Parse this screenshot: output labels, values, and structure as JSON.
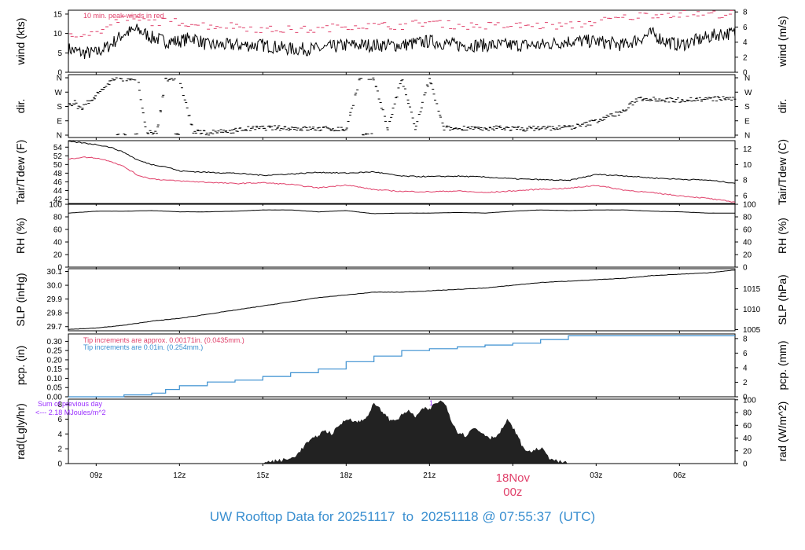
{
  "footer": {
    "title": "UW Rooftop Data for 20251117  to  20251118 @ 07:55:37  (UTC)"
  },
  "chart_data": [
    {
      "id": "wind",
      "type": "line",
      "left_axis_label": "wind (kts)",
      "right_axis_label": "wind (m/s)",
      "left_ticks": [
        0,
        5,
        10,
        15
      ],
      "left_range": [
        0,
        16
      ],
      "right_ticks": [
        0,
        2,
        4,
        6,
        8
      ],
      "right_range": [
        0,
        8.23
      ],
      "annotations": [
        {
          "text": "10 min. peak-winds in red",
          "color": "#e0406a"
        }
      ],
      "series": [
        {
          "name": "wind",
          "color": "#000000",
          "style": "line",
          "x": [
            8,
            8.5,
            9,
            9.5,
            10,
            10.5,
            11,
            11.5,
            12,
            12.5,
            13,
            14,
            15,
            16,
            17,
            18,
            19,
            20,
            21,
            22,
            23,
            24,
            25,
            26,
            27,
            28,
            29,
            29.5,
            30,
            30.5,
            31,
            31.5,
            32
          ],
          "y": [
            6,
            5,
            5,
            7,
            10,
            11,
            9,
            8,
            8,
            9,
            7,
            7,
            7,
            6,
            6,
            7,
            7,
            7,
            8,
            7,
            7,
            7,
            7,
            8,
            8,
            7,
            10,
            8,
            7,
            8,
            9,
            10,
            10
          ]
        },
        {
          "name": "10 min. peak-winds",
          "color": "#e0406a",
          "style": "dash",
          "x": [
            8,
            9,
            10,
            11,
            12,
            13,
            14,
            15,
            16,
            17,
            18,
            19,
            20,
            21,
            22,
            23,
            24,
            25,
            26,
            27,
            28,
            29,
            30,
            31,
            32
          ],
          "y": [
            10,
            10,
            14,
            13,
            13,
            12,
            12,
            11,
            11,
            11,
            12,
            12,
            12,
            13,
            12,
            12,
            12,
            12,
            12,
            13,
            14,
            15,
            15,
            15,
            15
          ]
        }
      ]
    },
    {
      "id": "dir",
      "type": "scatter",
      "left_axis_label": "dir.",
      "right_axis_label": "dir.",
      "ticks": [
        "N",
        "E",
        "S",
        "W",
        "N"
      ],
      "range": [
        0,
        360
      ],
      "series": [
        {
          "name": "direction",
          "color": "#000000",
          "x": [
            8.2,
            8.5,
            8.8,
            9.0,
            9.3,
            9.6,
            9.9,
            10.2,
            10.5,
            10.8,
            11.2,
            11.5,
            12.0,
            12.5,
            13.0,
            13.5,
            14.0,
            14.5,
            15.0,
            15.5,
            16.0,
            16.5,
            17.0,
            17.5,
            18.0,
            18.5,
            19.0,
            19.5,
            20.0,
            20.5,
            21.0,
            21.5,
            22.0,
            22.5,
            23.0,
            23.5,
            24.0,
            24.5,
            25.0,
            25.5,
            26.0,
            26.5,
            27.0,
            27.5,
            28.0,
            28.5,
            29.0,
            29.5,
            30.0,
            30.5,
            31.0,
            31.5,
            32.0
          ],
          "y": [
            190,
            170,
            220,
            250,
            300,
            350,
            355,
            355,
            355,
            10,
            20,
            355,
            355,
            20,
            15,
            20,
            30,
            40,
            45,
            45,
            45,
            40,
            40,
            40,
            35,
            355,
            355,
            40,
            355,
            40,
            355,
            45,
            40,
            50,
            30,
            50,
            40,
            40,
            45,
            45,
            50,
            60,
            90,
            120,
            150,
            230,
            230,
            220,
            220,
            225,
            225,
            230,
            230
          ]
        }
      ]
    },
    {
      "id": "temp",
      "type": "line",
      "left_axis_label": "Tair/Tdew (F)",
      "right_axis_label": "Tair/Tdew (C)",
      "left_ticks": [
        42,
        44,
        46,
        48,
        50,
        52,
        54
      ],
      "left_range": [
        41,
        55.5
      ],
      "right_ticks": [
        6,
        8,
        10,
        12
      ],
      "right_range": [
        5,
        13.06
      ],
      "series": [
        {
          "name": "Tair",
          "color": "#000000",
          "x": [
            8,
            8.5,
            9,
            9.5,
            10,
            10.5,
            11,
            11.5,
            12,
            13,
            14,
            15,
            16,
            17,
            18,
            19,
            20,
            21,
            22,
            23,
            24,
            25,
            26,
            27,
            28,
            29,
            30,
            31,
            32
          ],
          "y": [
            55.3,
            55,
            54.6,
            54,
            52.8,
            51,
            50,
            49.5,
            48.5,
            48.2,
            48,
            47.5,
            47.8,
            48.2,
            48,
            48.3,
            47.3,
            47.2,
            47.3,
            47.1,
            46.7,
            46.5,
            46.3,
            47.7,
            47.4,
            46.9,
            46.6,
            46.4,
            45.7
          ]
        },
        {
          "name": "Tdew",
          "color": "#e0406a",
          "x": [
            8,
            8.5,
            9,
            9.5,
            10,
            10.5,
            11,
            11.5,
            12,
            13,
            14,
            15,
            16,
            17,
            18,
            19,
            20,
            21,
            22,
            23,
            24,
            25,
            26,
            27,
            28,
            29,
            30,
            31,
            32
          ],
          "y": [
            51.2,
            51.7,
            51.5,
            50.8,
            49.5,
            47.5,
            46.7,
            46.4,
            46.2,
            45.9,
            45.6,
            45.8,
            45.4,
            44.6,
            45.3,
            44.2,
            43.8,
            43.7,
            43.9,
            43.5,
            43.9,
            44.3,
            44.5,
            45.2,
            44.1,
            43.5,
            42.8,
            42.2,
            41.3
          ]
        }
      ]
    },
    {
      "id": "rh",
      "type": "line",
      "left_axis_label": "RH (%)",
      "right_axis_label": "RH (%)",
      "left_ticks": [
        0,
        20,
        40,
        60,
        80,
        100
      ],
      "left_range": [
        0,
        100
      ],
      "right_ticks": [
        0,
        20,
        40,
        60,
        80,
        100
      ],
      "right_range": [
        0,
        100
      ],
      "series": [
        {
          "name": "RH",
          "color": "#000000",
          "x": [
            8,
            9,
            10,
            11,
            12,
            13,
            14,
            15,
            16,
            17,
            18,
            19,
            20,
            21,
            22,
            23,
            24,
            25,
            26,
            27,
            28,
            29,
            30,
            31,
            32
          ],
          "y": [
            86,
            89,
            89,
            90,
            88,
            88,
            89,
            91,
            91,
            88,
            90,
            85,
            86,
            86,
            87,
            86,
            89,
            91,
            90,
            91,
            91,
            89,
            88,
            86,
            86
          ]
        }
      ]
    },
    {
      "id": "slp",
      "type": "line",
      "left_axis_label": "SLP (inHg)",
      "right_axis_label": "SLP (hPa)",
      "left_ticks": [
        29.7,
        29.8,
        29.9,
        30.0,
        30.1
      ],
      "left_range": [
        29.67,
        30.12
      ],
      "right_ticks": [
        1005,
        1010,
        1015
      ],
      "right_range": [
        1004.7,
        1019.9
      ],
      "series": [
        {
          "name": "SLP",
          "color": "#000000",
          "x": [
            8,
            9,
            10,
            11,
            12,
            13,
            14,
            15,
            16,
            17,
            18,
            19,
            20,
            21,
            22,
            23,
            24,
            25,
            26,
            27,
            28,
            29,
            30,
            31,
            32
          ],
          "y": [
            29.68,
            29.69,
            29.71,
            29.74,
            29.76,
            29.79,
            29.82,
            29.85,
            29.88,
            29.91,
            29.93,
            29.95,
            29.95,
            29.96,
            29.97,
            29.98,
            30.0,
            30.02,
            30.03,
            30.04,
            30.05,
            30.07,
            30.08,
            30.09,
            30.11
          ]
        }
      ]
    },
    {
      "id": "pcp",
      "type": "line",
      "left_axis_label": "pcp. (in)",
      "right_axis_label": "pcp. (mm)",
      "left_ticks": [
        0.0,
        0.05,
        0.1,
        0.15,
        0.2,
        0.25,
        0.3
      ],
      "left_range": [
        0,
        0.34
      ],
      "right_ticks": [
        0,
        2,
        4,
        6,
        8
      ],
      "right_range": [
        0,
        8.636
      ],
      "annotations": [
        {
          "text": "Tip increments are approx. 0.00171in. (0.0435mm.)",
          "color": "#e0406a"
        },
        {
          "text": "Tip increments are 0.01in. (0.254mm.)",
          "color": "#3a8fd0"
        }
      ],
      "series": [
        {
          "name": "pcp",
          "color": "#3a8fd0",
          "x": [
            8,
            10,
            11,
            11.5,
            12,
            13,
            14,
            15,
            16,
            17,
            18,
            19,
            20,
            21,
            22,
            23,
            24,
            25,
            26,
            26.5,
            27,
            28,
            29,
            30,
            31,
            32
          ],
          "y": [
            0.0,
            0.01,
            0.02,
            0.04,
            0.06,
            0.08,
            0.09,
            0.11,
            0.13,
            0.15,
            0.19,
            0.22,
            0.25,
            0.26,
            0.27,
            0.28,
            0.29,
            0.31,
            0.33,
            0.33,
            0.33,
            0.33,
            0.33,
            0.33,
            0.33,
            0.33
          ]
        }
      ]
    },
    {
      "id": "rad",
      "type": "area",
      "left_axis_label": "rad(Lgly/hr)",
      "right_axis_label": "rad (W/m^2)",
      "left_ticks": [
        0,
        2,
        4,
        6,
        8
      ],
      "left_range": [
        0,
        8.7
      ],
      "right_ticks": [
        0,
        20,
        40,
        60,
        80,
        100
      ],
      "right_range": [
        0,
        101
      ],
      "annotations": [
        {
          "text": "Sum of previous day",
          "color": "#9b30ff"
        },
        {
          "text": "<--- 2.18 MJoules/m^2",
          "color": "#9b30ff"
        },
        {
          "text": "1",
          "color": "#9b30ff"
        }
      ],
      "series": [
        {
          "name": "rad",
          "color": "#222222",
          "x": [
            15.0,
            15.5,
            16.0,
            16.3,
            16.6,
            16.9,
            17.2,
            17.5,
            17.8,
            18.1,
            18.4,
            18.7,
            19.0,
            19.3,
            19.6,
            19.9,
            20.2,
            20.5,
            20.8,
            21.0,
            21.2,
            21.4,
            21.6,
            21.8,
            22.0,
            22.3,
            22.6,
            22.9,
            23.2,
            23.5,
            23.8,
            24.1,
            24.4,
            24.7,
            25.0,
            25.3,
            25.6,
            26.0
          ],
          "y": [
            0.1,
            0.3,
            0.6,
            1.4,
            2.8,
            3.5,
            4.4,
            4.0,
            5.3,
            6.1,
            5.5,
            6.0,
            8.0,
            7.0,
            5.7,
            6.1,
            7.1,
            6.3,
            7.4,
            7.2,
            8.1,
            8.4,
            7.8,
            5.6,
            4.3,
            3.7,
            4.8,
            4.1,
            3.4,
            3.9,
            5.8,
            4.2,
            1.8,
            1.6,
            2.1,
            0.8,
            0.2,
            0.05
          ]
        }
      ]
    }
  ],
  "x_axis": {
    "range": [
      8,
      32
    ],
    "ticks": [
      {
        "value": 9,
        "label": "09z"
      },
      {
        "value": 12,
        "label": "12z"
      },
      {
        "value": 15,
        "label": "15z"
      },
      {
        "value": 18,
        "label": "18z"
      },
      {
        "value": 21,
        "label": "21z"
      },
      {
        "value": 27,
        "label": "03z"
      },
      {
        "value": 30,
        "label": "06z"
      }
    ],
    "date_marker": {
      "value": 24,
      "line1": "18Nov",
      "line2": "00z",
      "color": "#e0406a"
    }
  }
}
